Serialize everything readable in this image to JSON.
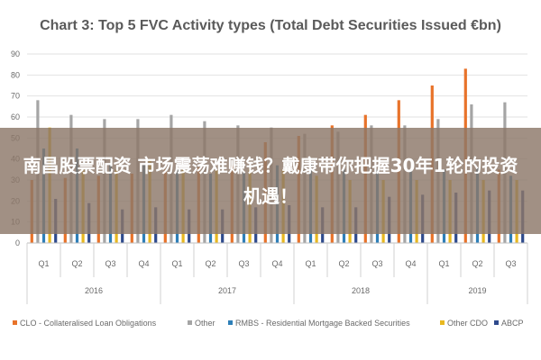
{
  "overlay": {
    "text": "南昌股票配资 市场震荡难赚钱？戴康带你把握30年1轮的投资机遇！"
  },
  "chart_data": {
    "type": "bar",
    "title": "Chart 3: Top 5 FVC Activity types (Total Debt Securities Issued €bn)",
    "ylim": [
      0,
      90
    ],
    "yticks": [
      0,
      10,
      20,
      30,
      40,
      50,
      60,
      70,
      80,
      90
    ],
    "grid": true,
    "legend_position": "bottom",
    "categories": [
      "Q1",
      "Q2",
      "Q3",
      "Q4",
      "Q1",
      "Q2",
      "Q3",
      "Q4",
      "Q1",
      "Q2",
      "Q3",
      "Q4",
      "Q1",
      "Q2",
      "Q3"
    ],
    "years": [
      {
        "label": "2016",
        "quarters": 4
      },
      {
        "label": "2017",
        "quarters": 4
      },
      {
        "label": "2018",
        "quarters": 4
      },
      {
        "label": "2019",
        "quarters": 3
      }
    ],
    "series": [
      {
        "name": "CLO - Collateralised Loan Obligations",
        "color": "#e8732a",
        "values": [
          30,
          31,
          32,
          33,
          35,
          36,
          37,
          48,
          51,
          56,
          61,
          68,
          75,
          83,
          35
        ]
      },
      {
        "name": "Other",
        "color": "#a5a5a5",
        "values": [
          68,
          61,
          59,
          59,
          61,
          58,
          56,
          55,
          52,
          53,
          56,
          56,
          59,
          66,
          67
        ]
      },
      {
        "name": "RMBS - Residential Mortgage Backed Securities",
        "color": "#2e7fb8",
        "values": [
          45,
          45,
          38,
          38,
          35,
          33,
          34,
          37,
          38,
          35,
          35,
          35,
          35,
          36,
          32
        ]
      },
      {
        "name": "Other CDO",
        "color": "#e8b820",
        "values": [
          55,
          35,
          35,
          40,
          35,
          35,
          35,
          35,
          32,
          30,
          30,
          30,
          30,
          30,
          30
        ]
      },
      {
        "name": "ABCP",
        "color": "#2e4a8c",
        "values": [
          21,
          19,
          16,
          17,
          16,
          16,
          17,
          18,
          17,
          17,
          22,
          23,
          24,
          25,
          25
        ]
      }
    ]
  }
}
